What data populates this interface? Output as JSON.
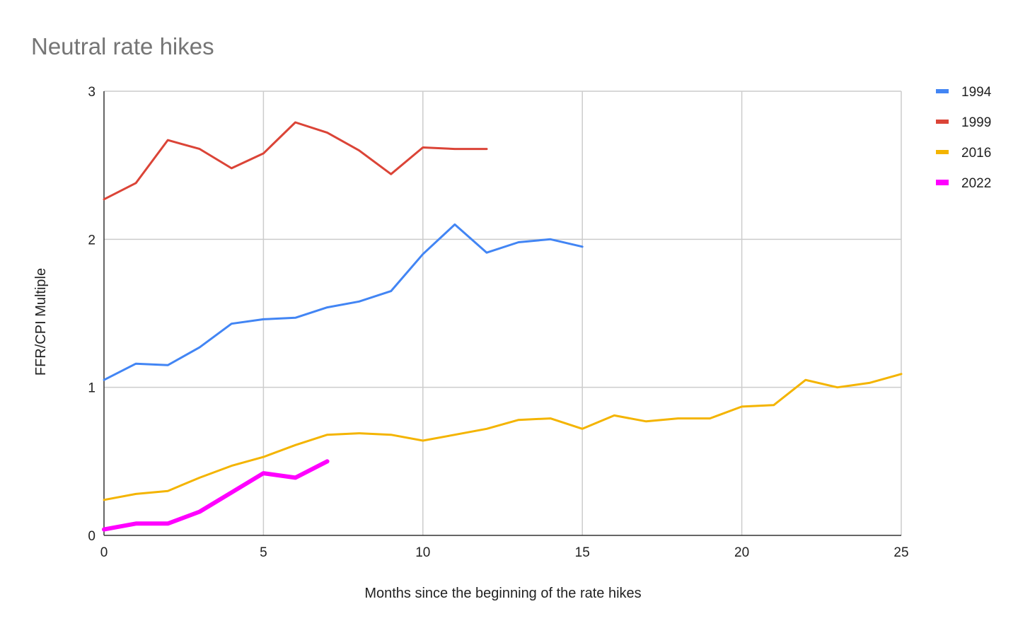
{
  "chart_data": {
    "type": "line",
    "title": "Neutral rate hikes",
    "xlabel": "Months since the beginning of the rate hikes",
    "ylabel": "FFR/CPI Multiple",
    "xlim": [
      0,
      25
    ],
    "ylim": [
      0,
      3
    ],
    "xticks": [
      0,
      5,
      10,
      15,
      20,
      25
    ],
    "yticks": [
      0,
      1,
      2,
      3
    ],
    "xtick_labels": [
      "0",
      "5",
      "10",
      "15",
      "20",
      "25"
    ],
    "ytick_labels": [
      "0",
      "1",
      "2",
      "3"
    ],
    "grid": true,
    "legend_position": "right",
    "series": [
      {
        "name": "1994",
        "color": "#4285f4",
        "emphasis": false,
        "x": [
          0,
          1,
          2,
          3,
          4,
          5,
          6,
          7,
          8,
          9,
          10,
          11,
          12,
          13,
          14,
          15
        ],
        "y": [
          1.05,
          1.16,
          1.15,
          1.27,
          1.43,
          1.46,
          1.47,
          1.54,
          1.58,
          1.65,
          1.9,
          2.1,
          1.91,
          1.98,
          2.0,
          1.95
        ]
      },
      {
        "name": "1999",
        "color": "#db4437",
        "emphasis": false,
        "x": [
          0,
          1,
          2,
          3,
          4,
          5,
          6,
          7,
          8,
          9,
          10,
          11,
          12
        ],
        "y": [
          2.27,
          2.38,
          2.67,
          2.61,
          2.48,
          2.58,
          2.79,
          2.72,
          2.6,
          2.44,
          2.62,
          2.61,
          2.61
        ]
      },
      {
        "name": "2016",
        "color": "#f4b400",
        "emphasis": false,
        "x": [
          0,
          1,
          2,
          3,
          4,
          5,
          6,
          7,
          8,
          9,
          10,
          11,
          12,
          13,
          14,
          15,
          16,
          17,
          18,
          19,
          20,
          21,
          22,
          23,
          24,
          25
        ],
        "y": [
          0.24,
          0.28,
          0.3,
          0.39,
          0.47,
          0.53,
          0.61,
          0.68,
          0.69,
          0.68,
          0.64,
          0.68,
          0.72,
          0.78,
          0.79,
          0.72,
          0.81,
          0.77,
          0.79,
          0.79,
          0.87,
          0.88,
          1.05,
          1.0,
          1.03,
          1.09
        ]
      },
      {
        "name": "2022",
        "color": "#ff00ff",
        "emphasis": true,
        "x": [
          0,
          1,
          2,
          3,
          4,
          5,
          6,
          7
        ],
        "y": [
          0.04,
          0.08,
          0.08,
          0.16,
          0.29,
          0.42,
          0.39,
          0.5
        ]
      }
    ]
  }
}
